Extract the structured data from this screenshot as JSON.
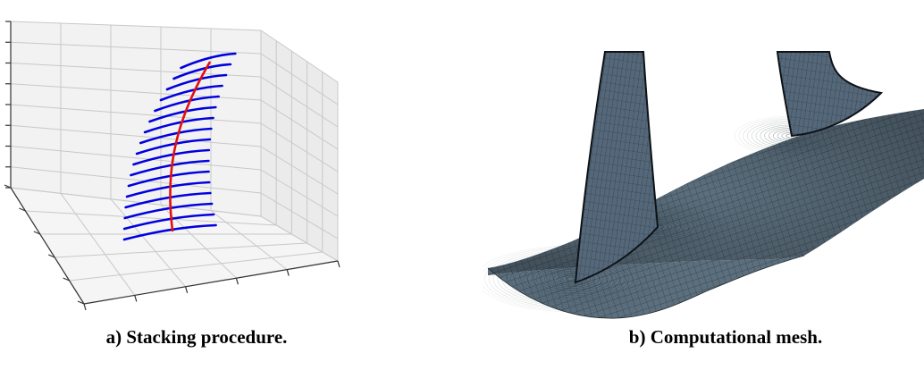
{
  "figure": {
    "panels": [
      {
        "id": "a",
        "caption": "a) Stacking procedure.",
        "stacking_line_color": "#e01010",
        "section_color": "#0000e0",
        "section_count": 17
      },
      {
        "id": "b",
        "caption": "b) Computational mesh.",
        "mesh_color": "#4a5d6b",
        "blade_count": 2
      }
    ]
  }
}
